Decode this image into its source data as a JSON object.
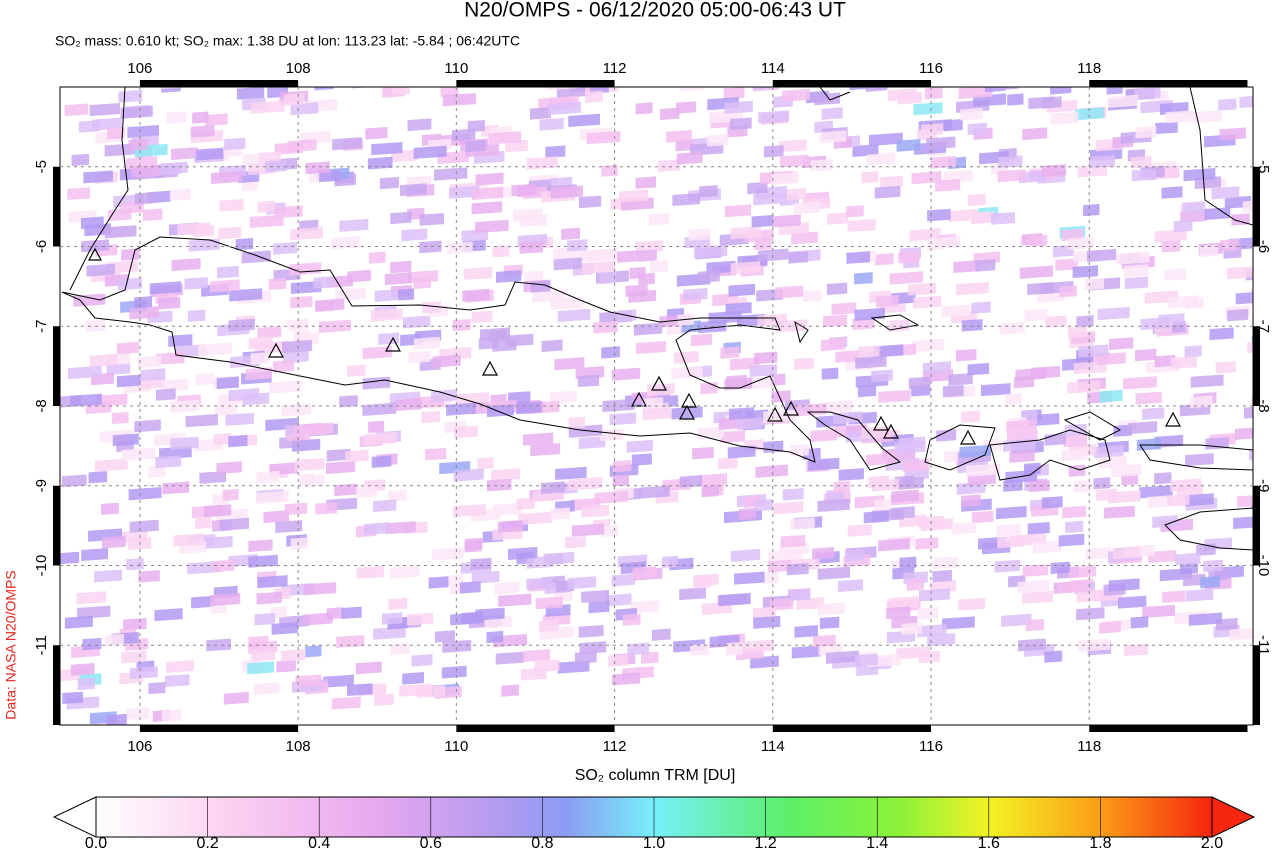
{
  "chart_data": {
    "type": "map",
    "title": "N20/OMPS - 06/12/2020 05:00-06:43 UT",
    "subtitle": "SO₂ mass: 0.610 kt; SO₂ max: 1.38 DU at lon: 113.23 lat: -5.84 ; 06:42UTC",
    "credit": "Data: NASA N20/OMPS",
    "xlim": [
      104.99,
      120.07
    ],
    "ylim": [
      -12,
      -4
    ],
    "xticks": [
      106,
      108,
      110,
      112,
      114,
      116,
      118
    ],
    "yticks": [
      -5,
      -6,
      -7,
      -8,
      -9,
      -10,
      -11
    ],
    "grid": true,
    "colorbar": {
      "label": "SO₂ column TRM [DU]",
      "lim": [
        0,
        2
      ],
      "ticks": [
        {
          "value": 0,
          "label": "0.0"
        },
        {
          "value": 0.2,
          "label": "0.2"
        },
        {
          "value": 0.4,
          "label": "0.4"
        },
        {
          "value": 0.6,
          "label": "0.6"
        },
        {
          "value": 0.8,
          "label": "0.8"
        },
        {
          "value": 1,
          "label": "1.0"
        },
        {
          "value": 1.2,
          "label": "1.2"
        },
        {
          "value": 1.4,
          "label": "1.4"
        },
        {
          "value": 1.6,
          "label": "1.6"
        },
        {
          "value": 1.8,
          "label": "1.8"
        },
        {
          "value": 2,
          "label": "2.0"
        }
      ]
    }
  }
}
